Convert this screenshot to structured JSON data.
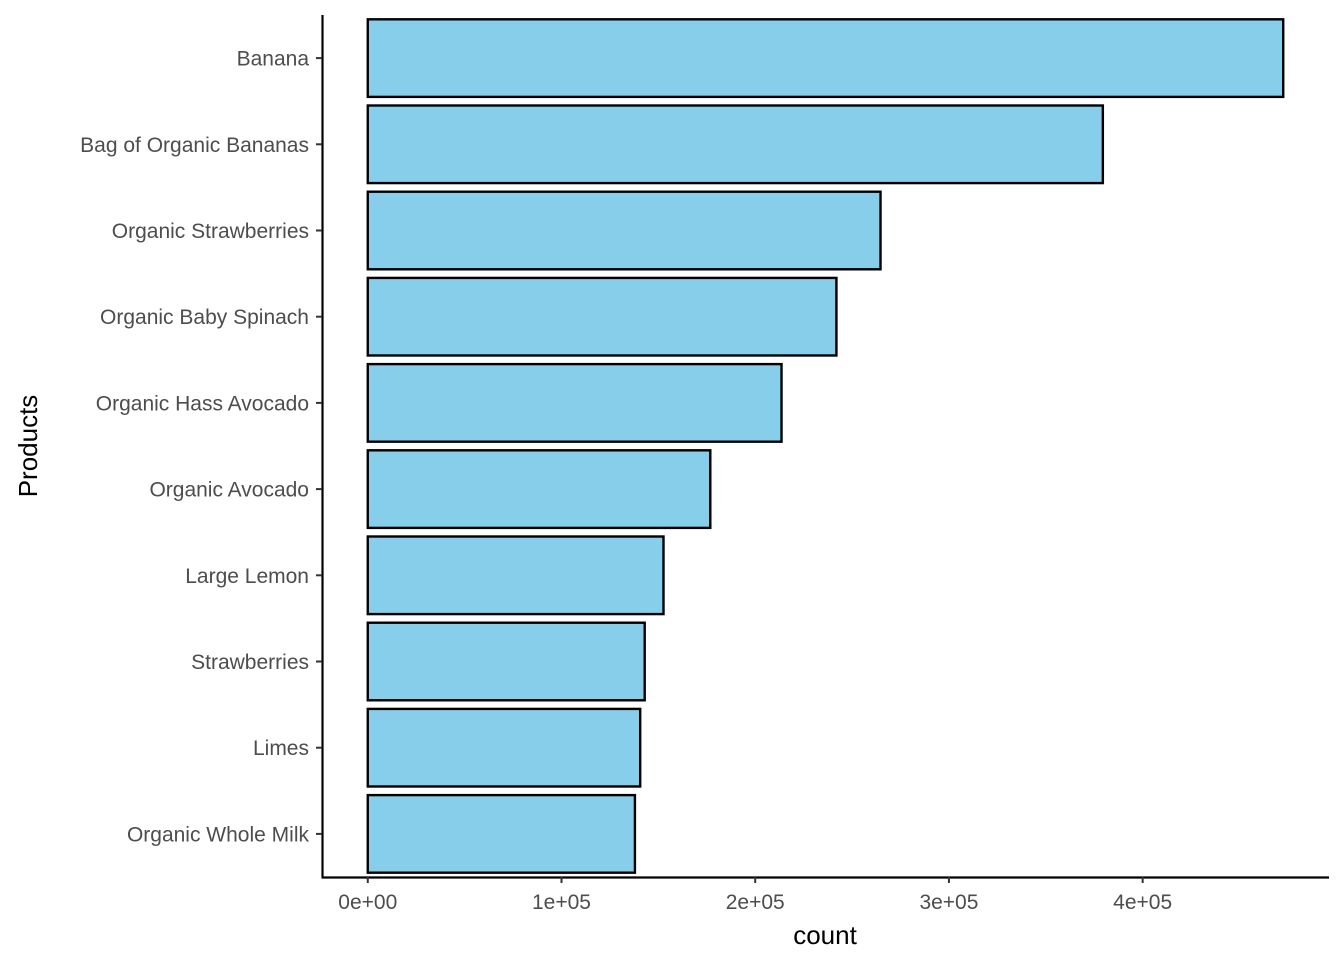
{
  "chart_data": {
    "type": "bar",
    "orientation": "horizontal",
    "title": "",
    "xlabel": "count",
    "ylabel": "Products",
    "categories": [
      "Banana",
      "Bag of Organic Bananas",
      "Organic Strawberries",
      "Organic Baby Spinach",
      "Organic Hass Avocado",
      "Organic Avocado",
      "Large Lemon",
      "Strawberries",
      "Limes",
      "Organic Whole Milk"
    ],
    "values": [
      472565,
      379450,
      264683,
      241921,
      213584,
      176815,
      152657,
      142951,
      140627,
      137905
    ],
    "x_ticks": [
      0,
      100000,
      200000,
      300000,
      400000
    ],
    "x_tick_labels": [
      "0e+00",
      "1e+05",
      "2e+05",
      "3e+05",
      "4e+05"
    ],
    "xlim": [
      -23628,
      496193
    ],
    "grid": false,
    "legend": "none",
    "colors": {
      "bar_fill": "#87CEEB",
      "bar_outline": "#000000"
    }
  }
}
